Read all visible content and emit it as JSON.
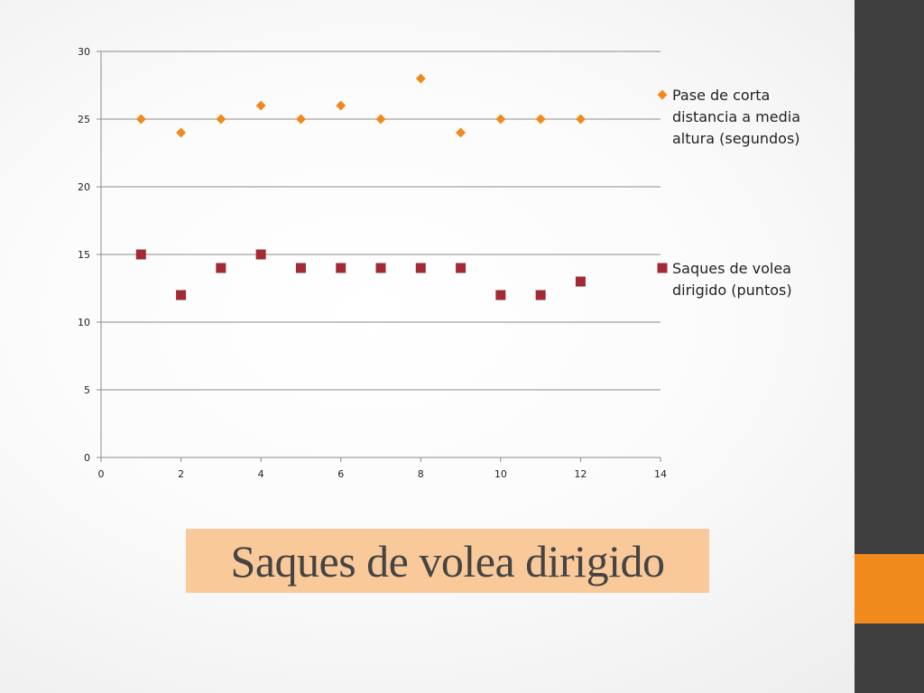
{
  "slide": {
    "title": "Saques de volea dirigido"
  },
  "theme": {
    "background": "#ffffff",
    "sidebar_color": "#3f3f3f",
    "accent_color": "#f08a1c",
    "title_box_color": "#f9c999",
    "gridline_color": "#8c8c8c"
  },
  "chart_data": {
    "type": "scatter",
    "title": "",
    "xlabel": "",
    "ylabel": "",
    "xlim": [
      0,
      14
    ],
    "ylim": [
      0,
      30
    ],
    "x_ticks": [
      0,
      2,
      4,
      6,
      8,
      10,
      12,
      14
    ],
    "y_ticks": [
      0,
      5,
      10,
      15,
      20,
      25,
      30
    ],
    "grid": "horizontal",
    "legend_position": "right",
    "series": [
      {
        "name": "Pase de corta distancia a media altura (segundos)",
        "legend_lines": [
          "Pase de corta",
          "distancia a media",
          "altura (segundos)"
        ],
        "marker": "diamond",
        "color": "#f08a1c",
        "x": [
          1,
          2,
          3,
          4,
          5,
          6,
          7,
          8,
          9,
          10,
          11,
          12
        ],
        "y": [
          25,
          24,
          25,
          26,
          25,
          26,
          25,
          28,
          24,
          25,
          25,
          25
        ]
      },
      {
        "name": "Saques de volea dirigido (puntos)",
        "legend_lines": [
          "Saques de volea",
          "dirigido (puntos)"
        ],
        "marker": "square",
        "color": "#a12a34",
        "x": [
          1,
          2,
          3,
          4,
          5,
          6,
          7,
          8,
          9,
          10,
          11,
          12
        ],
        "y": [
          15,
          12,
          14,
          15,
          14,
          14,
          14,
          14,
          14,
          12,
          12,
          13
        ]
      }
    ]
  }
}
